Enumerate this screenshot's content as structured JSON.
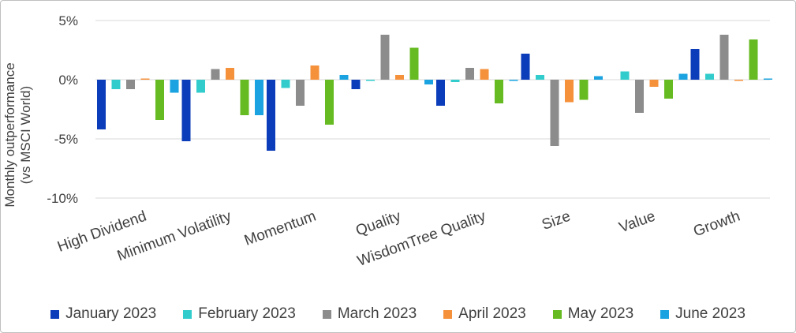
{
  "chart_data": {
    "type": "bar",
    "y_label": "Monthly outperformance (vs MSCI World)",
    "categories": [
      "High Dividend",
      "Minimum Volatility",
      "Momentum",
      "Quality",
      "WisdomTree Quality",
      "Size",
      "Value",
      "Growth"
    ],
    "series": [
      {
        "name": "January 2023",
        "color": "#0b3dba",
        "values": [
          -4.2,
          -5.2,
          -6.0,
          -0.8,
          -2.2,
          2.2,
          0.0,
          2.6
        ]
      },
      {
        "name": "February 2023",
        "color": "#33cccc",
        "values": [
          -0.8,
          -1.1,
          -0.7,
          -0.1,
          -0.2,
          0.4,
          0.7,
          0.5
        ]
      },
      {
        "name": "March 2023",
        "color": "#8c8c8c",
        "values": [
          -0.8,
          0.9,
          -2.2,
          3.8,
          1.0,
          -5.6,
          -2.8,
          3.8
        ]
      },
      {
        "name": "April 2023",
        "color": "#f5913b",
        "values": [
          0.1,
          1.0,
          1.2,
          0.4,
          0.9,
          -1.9,
          -0.6,
          -0.1
        ]
      },
      {
        "name": "May 2023",
        "color": "#66bb22",
        "values": [
          -3.4,
          -3.0,
          -3.8,
          2.7,
          -2.0,
          -1.7,
          -1.6,
          3.4
        ]
      },
      {
        "name": "June 2023",
        "color": "#1aa3e0",
        "values": [
          -1.1,
          -3.0,
          0.4,
          -0.4,
          -0.1,
          0.3,
          0.5,
          0.1
        ]
      }
    ],
    "ylim": [
      -10,
      5
    ],
    "yticks": [
      {
        "value": -10,
        "label": "-10%"
      },
      {
        "value": -5,
        "label": "-5%"
      },
      {
        "value": 0,
        "label": "0%"
      },
      {
        "value": 5,
        "label": "5%"
      }
    ],
    "grid": true
  }
}
